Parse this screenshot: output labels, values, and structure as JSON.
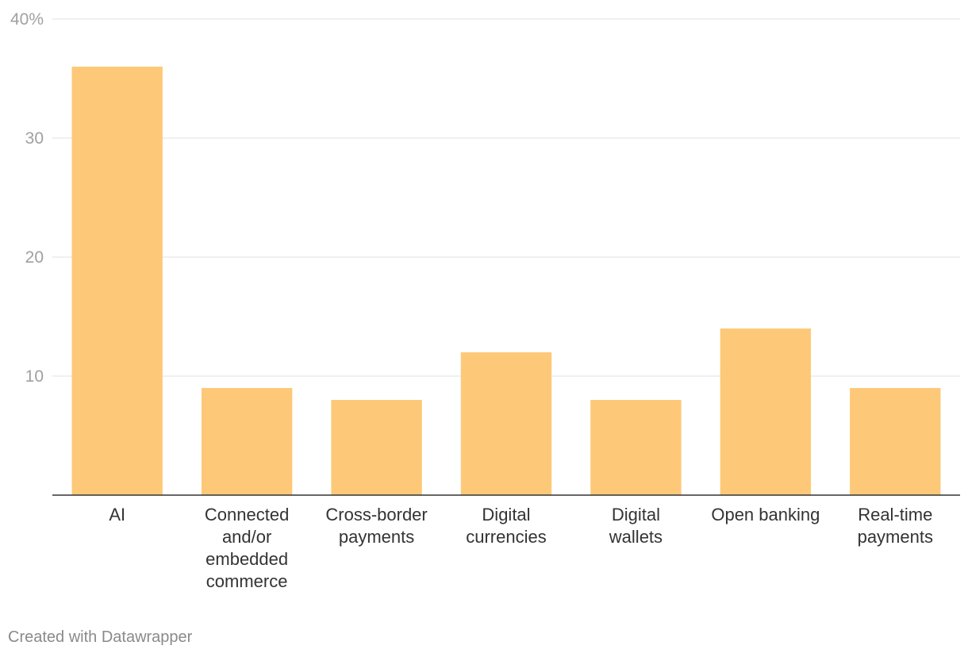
{
  "chart_data": {
    "type": "bar",
    "categories": [
      "AI",
      "Connected and/or embedded commerce",
      "Cross-border payments",
      "Digital currencies",
      "Digital wallets",
      "Open banking",
      "Real-time payments"
    ],
    "category_label_lines": [
      [
        "AI"
      ],
      [
        "Connected",
        "and/or",
        "embedded",
        "commerce"
      ],
      [
        "Cross-border",
        "payments"
      ],
      [
        "Digital",
        "currencies"
      ],
      [
        "Digital",
        "wallets"
      ],
      [
        "Open banking"
      ],
      [
        "Real-time",
        "payments"
      ]
    ],
    "values": [
      36,
      9,
      8,
      12,
      8,
      14,
      9
    ],
    "ylim": [
      0,
      40
    ],
    "yticks": [
      10,
      20,
      30,
      40
    ],
    "ytick_labels": [
      "10",
      "20",
      "30",
      "40%"
    ],
    "grid": true,
    "title": "",
    "xlabel": "",
    "ylabel": "",
    "bar_color": "#fdc978",
    "grid_color": "#e2e2e2",
    "axis_color": "#333333"
  },
  "footer": {
    "credit": "Created with Datawrapper"
  }
}
